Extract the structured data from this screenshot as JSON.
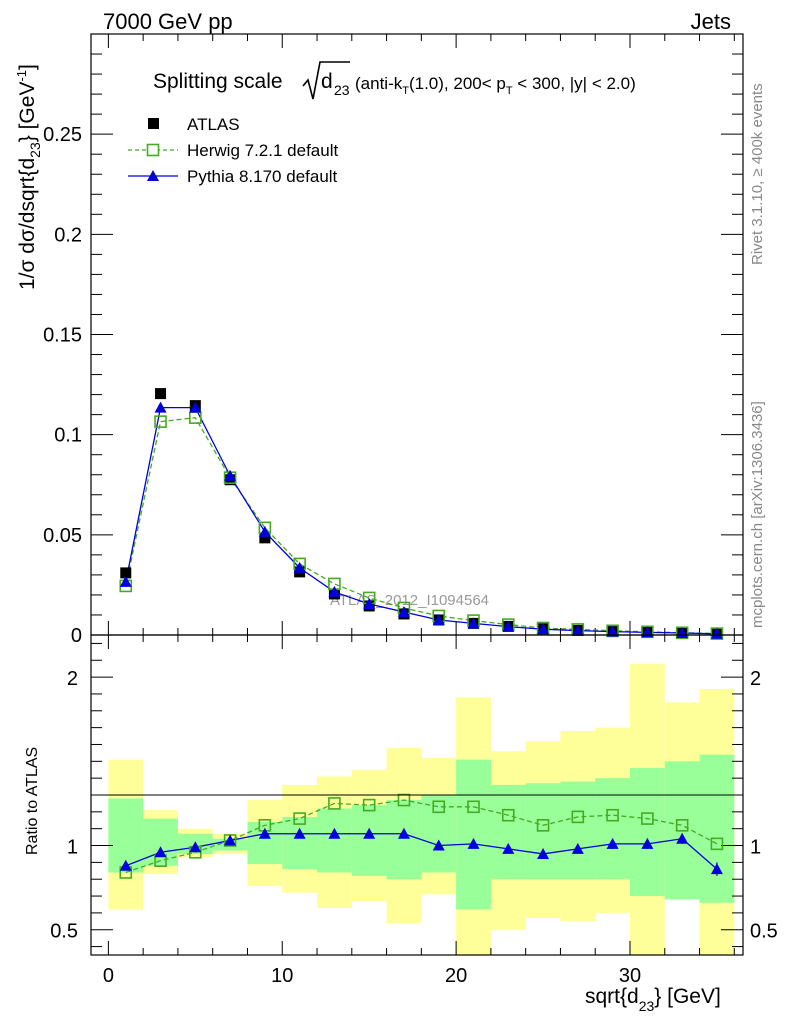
{
  "header": {
    "left": "7000 GeV pp",
    "right": "Jets"
  },
  "side_labels": {
    "rivet": "Rivet 3.1.10, ≥ 400k events",
    "mcplots": "mcplots.cern.ch [arXiv:1306.3436]"
  },
  "watermark": "ATLAS_2012_I1094564",
  "colors": {
    "data": "#000000",
    "herwig": "#44aa22",
    "pythia": "#0000dd",
    "band_inner": "#99ff99",
    "band_outer": "#ffff99"
  },
  "chart_data": [
    {
      "type": "line",
      "panel": "main",
      "title_main": "Splitting scale",
      "title_sqrt": "d",
      "title_sqrt_sub": "23",
      "title_cuts_1": "(anti-k",
      "title_cuts_sub1": "T",
      "title_cuts_2": "(1.0), 200< p",
      "title_cuts_sub2": "T",
      "title_cuts_3": " < 300, |y| < 2.0)",
      "ylabel": "1/σ dσ/dsqrt{d",
      "ylabel_sub": "23",
      "ylabel_tail": "} [GeV",
      "ylabel_sup": "-1",
      "ylabel_end": "]",
      "xlim": [
        -1,
        36.5
      ],
      "ylim": [
        0,
        0.3
      ],
      "yticks": [
        "0",
        "0.05",
        "0.1",
        "0.15",
        "0.2",
        "0.25"
      ],
      "ytick_values": [
        0,
        0.05,
        0.1,
        0.15,
        0.2,
        0.25
      ],
      "x": [
        1,
        3,
        5,
        7,
        9,
        11,
        13,
        15,
        17,
        19,
        21,
        23,
        25,
        27,
        29,
        31,
        33,
        35
      ],
      "series": [
        {
          "name": "ATLAS",
          "marker": "square-filled",
          "values": [
            0.031,
            0.1205,
            0.1145,
            0.0775,
            0.0485,
            0.0315,
            0.0205,
            0.0145,
            0.0105,
            0.0075,
            0.0058,
            0.0043,
            0.0031,
            0.0023,
            0.0017,
            0.0013,
            0.0009,
            0.0007
          ]
        },
        {
          "name": "Herwig 7.2.1 default",
          "marker": "square-open",
          "style": "dashed",
          "values": [
            0.0245,
            0.1065,
            0.1085,
            0.0785,
            0.0535,
            0.0355,
            0.0255,
            0.0185,
            0.0135,
            0.0095,
            0.0072,
            0.0052,
            0.0035,
            0.0028,
            0.0021,
            0.0016,
            0.0011,
            0.0007
          ]
        },
        {
          "name": "Pythia 8.170 default",
          "marker": "triangle-filled",
          "style": "solid",
          "values": [
            0.0265,
            0.1135,
            0.1135,
            0.0795,
            0.0515,
            0.0335,
            0.0215,
            0.0155,
            0.0115,
            0.0075,
            0.0058,
            0.0042,
            0.0029,
            0.0022,
            0.0017,
            0.0013,
            0.001,
            0.0006
          ]
        }
      ]
    },
    {
      "type": "line",
      "panel": "ratio",
      "ylabel": "Ratio to ATLAS",
      "xlabel": "sqrt{d",
      "xlabel_sub": "23",
      "xlabel_tail": "} [GeV]",
      "xlim": [
        -1,
        36.5
      ],
      "ylim": [
        0.35,
        2.25
      ],
      "xticks": [
        "0",
        "10",
        "20",
        "30"
      ],
      "xtick_values": [
        0,
        10,
        20,
        30
      ],
      "yticks": [
        "0.5",
        "1",
        "2"
      ],
      "ytick_values": [
        0.5,
        1,
        2
      ],
      "bin_edges": [
        0,
        2,
        4,
        6,
        8,
        10,
        12,
        14,
        16,
        18,
        20,
        22,
        24,
        26,
        28,
        30,
        32,
        34,
        36
      ],
      "band_inner": {
        "lo": [
          0.84,
          0.88,
          0.95,
          0.97,
          0.89,
          0.86,
          0.84,
          0.82,
          0.8,
          0.84,
          0.62,
          0.8,
          0.8,
          0.8,
          0.8,
          0.7,
          0.68,
          0.66
        ],
        "hi": [
          1.28,
          1.16,
          1.07,
          1.04,
          1.14,
          1.17,
          1.22,
          1.24,
          1.27,
          1.3,
          1.51,
          1.36,
          1.37,
          1.38,
          1.4,
          1.46,
          1.5,
          1.54
        ]
      },
      "band_outer": {
        "lo": [
          0.62,
          0.83,
          0.93,
          0.95,
          0.76,
          0.72,
          0.63,
          0.67,
          0.54,
          0.71,
          0.35,
          0.5,
          0.57,
          0.55,
          0.6,
          0.35,
          0.72,
          0.35
        ],
        "hi": [
          1.51,
          1.21,
          1.1,
          1.07,
          1.27,
          1.36,
          1.41,
          1.45,
          1.58,
          1.52,
          1.88,
          1.56,
          1.62,
          1.68,
          1.7,
          2.08,
          1.85,
          1.93
        ]
      },
      "x": [
        1,
        3,
        5,
        7,
        9,
        11,
        13,
        15,
        17,
        19,
        21,
        23,
        25,
        27,
        29,
        31,
        33,
        35
      ],
      "series": [
        {
          "name": "Herwig 7.2.1 default",
          "values": [
            0.84,
            0.91,
            0.96,
            1.03,
            1.12,
            1.16,
            1.25,
            1.24,
            1.27,
            1.23,
            1.23,
            1.18,
            1.12,
            1.17,
            1.18,
            1.16,
            1.12,
            1.01
          ]
        },
        {
          "name": "Pythia 8.170 default",
          "values": [
            0.88,
            0.96,
            0.99,
            1.03,
            1.07,
            1.07,
            1.07,
            1.07,
            1.07,
            1.0,
            1.01,
            0.98,
            0.95,
            0.98,
            1.01,
            1.01,
            1.04,
            0.86
          ],
          "errors": [
            0.02,
            0.01,
            0.01,
            0.01,
            0.01,
            0.01,
            0.01,
            0.01,
            0.01,
            0.01,
            0.01,
            0.01,
            0.02,
            0.02,
            0.03,
            0.03,
            0.03,
            0.04
          ]
        }
      ]
    }
  ]
}
